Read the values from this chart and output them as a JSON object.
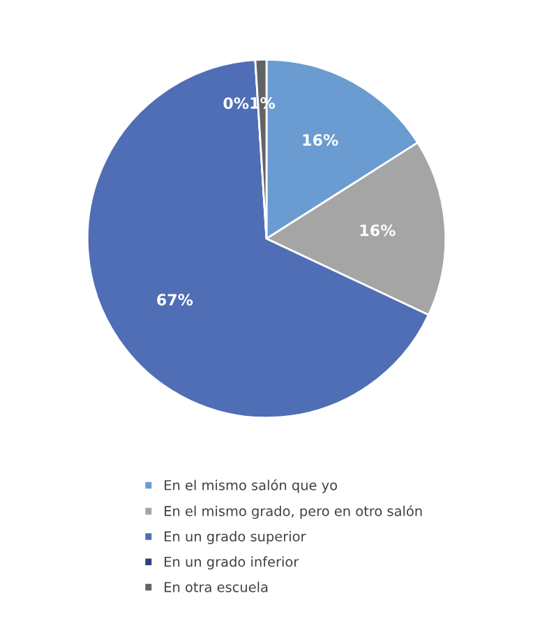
{
  "chart_data": {
    "type": "pie",
    "categories": [
      "En el mismo salón que yo",
      "En el mismo grado, pero en otro salón",
      "En un grado superior",
      "En un grado inferior",
      "En otra escuela"
    ],
    "values": [
      16,
      16,
      67,
      0,
      1
    ],
    "colors": [
      "#6a9bd1",
      "#a5a5a5",
      "#4f6eb5",
      "#264478",
      "#636363"
    ],
    "value_labels": [
      "16%",
      "16%",
      "67%",
      "0%",
      "1%"
    ],
    "legend": "bottom"
  }
}
